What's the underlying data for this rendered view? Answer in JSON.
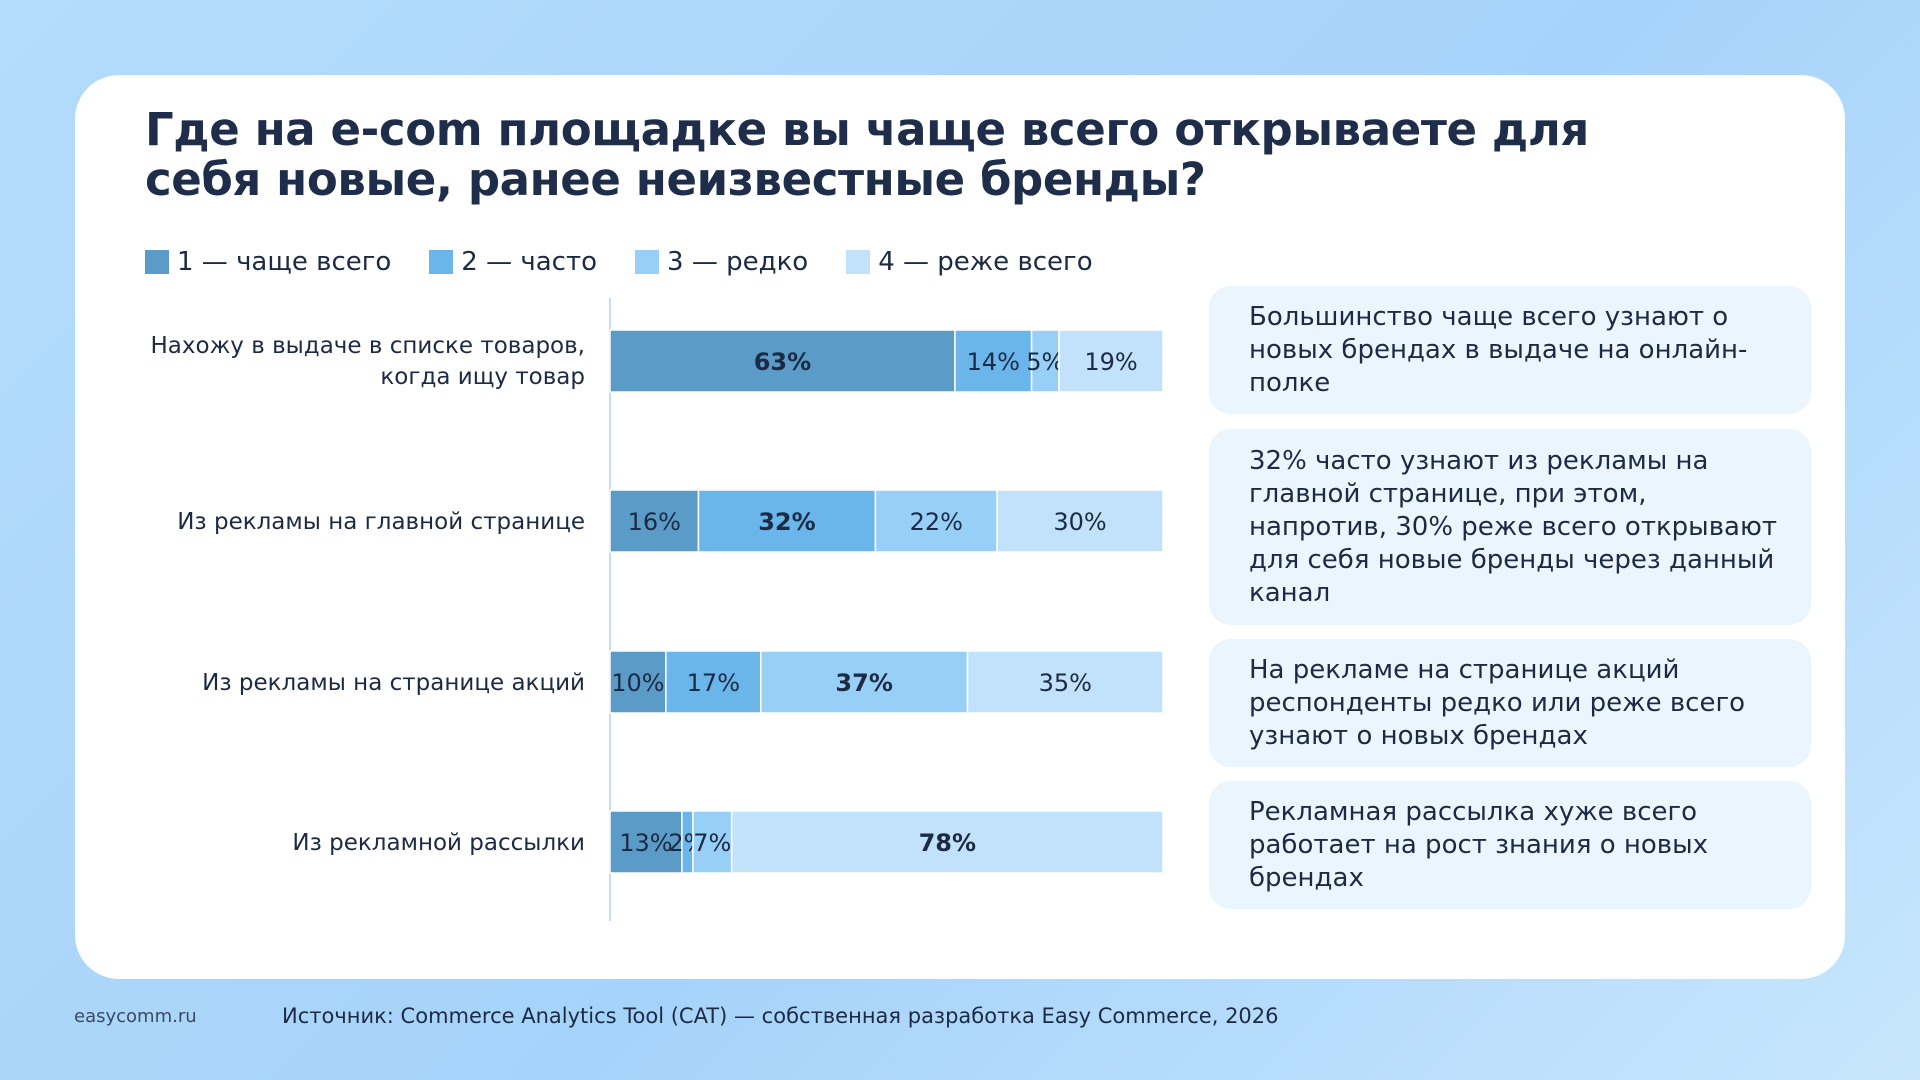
{
  "title": "Где на e-com площадке вы чаще всего открываете для себя новые, ранее неизвестные бренды?",
  "chart_data": {
    "type": "bar",
    "orientation": "horizontal",
    "stacked": true,
    "normalized_percent": true,
    "categories": [
      "Нахожу в выдаче в списке товаров, когда ищу товар",
      "Из рекламы на главной странице",
      "Из рекламы на странице акций",
      "Из рекламной рассылки"
    ],
    "series": [
      {
        "name": "1 — чаще всего",
        "values": [
          63,
          16,
          10,
          13
        ]
      },
      {
        "name": "2 — часто",
        "values": [
          14,
          32,
          17,
          2
        ]
      },
      {
        "name": "3 — редко",
        "values": [
          5,
          22,
          37,
          7
        ]
      },
      {
        "name": "4 — реже всего",
        "values": [
          19,
          30,
          35,
          78
        ]
      }
    ],
    "bold_segments": [
      [
        true,
        false,
        false,
        false
      ],
      [
        false,
        true,
        false,
        false
      ],
      [
        false,
        false,
        true,
        false
      ],
      [
        false,
        false,
        false,
        true
      ]
    ],
    "legend_position": "top-left",
    "grid": false
  },
  "colors": {
    "series": [
      "#5b9bc7",
      "#6ab5ea",
      "#97cff6",
      "#c2e1fb"
    ]
  },
  "notes": [
    "Большинство чаще всего узнают о новых брендах в выдаче на онлайн-полке",
    "32% часто узнают из рекламы на главной странице, при этом, напротив, 30% реже всего открывают для себя новые бренды через данный канал",
    "На рекламе на странице акций респонденты редко или реже всего узнают о новых брендах",
    "Рекламная рассылка хуже всего работает на рост знания о новых брендах"
  ],
  "footer": {
    "brand": "easycomm.ru",
    "source": "Источник: Commerce Analytics Tool (CAT) — собственная разработка Easy Commerce, 2026"
  }
}
